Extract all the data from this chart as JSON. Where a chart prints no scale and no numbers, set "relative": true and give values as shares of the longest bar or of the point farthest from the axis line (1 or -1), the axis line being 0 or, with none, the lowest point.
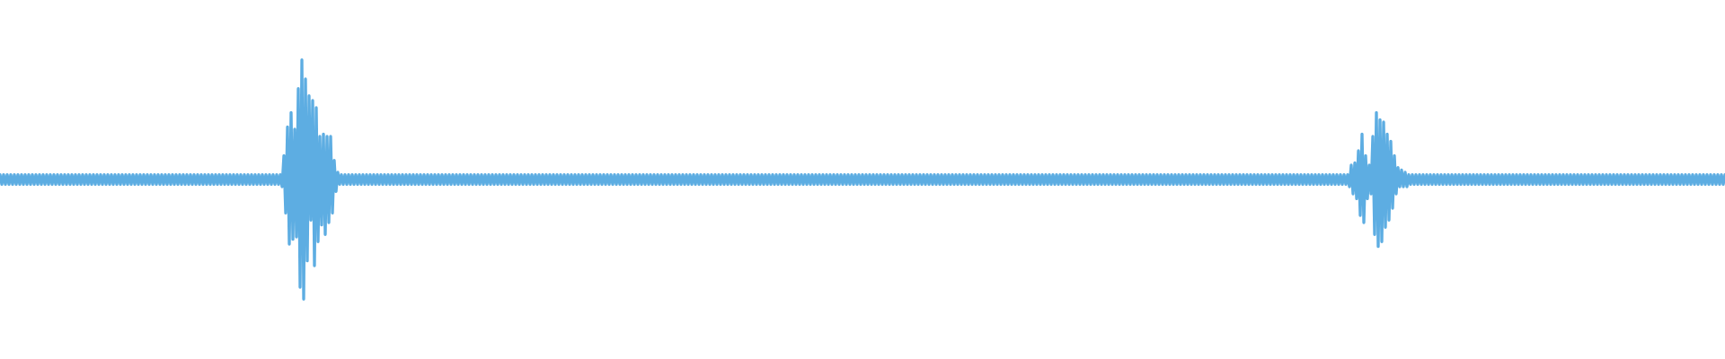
{
  "chart_data": {
    "type": "line",
    "relative": true,
    "color": "#5dade2",
    "categories": [
      null,
      null,
      null,
      null,
      null,
      null,
      null,
      null,
      null,
      null,
      null,
      null,
      null,
      null,
      null,
      null,
      null,
      null,
      null,
      null,
      null,
      null,
      null,
      null,
      null,
      null,
      null,
      null,
      null,
      null,
      null,
      null,
      null,
      null,
      null,
      null,
      null,
      null,
      null,
      null,
      null,
      null,
      null,
      null,
      null,
      null,
      null,
      null,
      null,
      null,
      null,
      null,
      null,
      null,
      null,
      null,
      null,
      null,
      null,
      null,
      null,
      null,
      null,
      null,
      null,
      null,
      null,
      null,
      null,
      null,
      null,
      null,
      null,
      null,
      null,
      null,
      null,
      null,
      null,
      null,
      null,
      null,
      null,
      null,
      null,
      null,
      null,
      null,
      null,
      null,
      null,
      null,
      null,
      null,
      null,
      null,
      null,
      null,
      null,
      null,
      null,
      null,
      null,
      null,
      null,
      null,
      null,
      null,
      null,
      null,
      null,
      null,
      null,
      null,
      null,
      null,
      null,
      null,
      null,
      null,
      null,
      null,
      null,
      null,
      null,
      null,
      null,
      null,
      null,
      null,
      null,
      null,
      null,
      null,
      null,
      null,
      null,
      null,
      null,
      null,
      null,
      null,
      null,
      null,
      null,
      null,
      null,
      null,
      null,
      null,
      null,
      null,
      null,
      null,
      null,
      null,
      null,
      null,
      null,
      null,
      null,
      null,
      null,
      null,
      null,
      null,
      null,
      null,
      null,
      null,
      null,
      null,
      null,
      null,
      null,
      null,
      null,
      null,
      null,
      null,
      null,
      null,
      null,
      null,
      null,
      null,
      null,
      null,
      null,
      null,
      null,
      null,
      null,
      null,
      null,
      null,
      null,
      null,
      null,
      null,
      null,
      null,
      null,
      null,
      null,
      null,
      null,
      null,
      null,
      null,
      null,
      null,
      null,
      null,
      null,
      null,
      null,
      null,
      null,
      null,
      null,
      null,
      null,
      null,
      null,
      null,
      null,
      null,
      null,
      null,
      null,
      null,
      null,
      null,
      null,
      null,
      null,
      null,
      null,
      null,
      null,
      null,
      null,
      null,
      null,
      null,
      null,
      null,
      null,
      null,
      null,
      null,
      null,
      null,
      null,
      null,
      null,
      null,
      null,
      null,
      null,
      null,
      null,
      null,
      null,
      null,
      null,
      null,
      null,
      null,
      null,
      null,
      null,
      null,
      null,
      null,
      null,
      null,
      null,
      null,
      null,
      null,
      null,
      null,
      null,
      null,
      null,
      null,
      null,
      null,
      null,
      null,
      null,
      null,
      null,
      null,
      null,
      null,
      null,
      null,
      null,
      null,
      null,
      null,
      null,
      null,
      null,
      null,
      null,
      null,
      null,
      null,
      null,
      null,
      null,
      null,
      null,
      null,
      null,
      null,
      null,
      null,
      null,
      null,
      null,
      null,
      null,
      null,
      null,
      null,
      null,
      null,
      null,
      null,
      null,
      null,
      null,
      null,
      null,
      null,
      null,
      null,
      null,
      null,
      null,
      null,
      null,
      null,
      null,
      null,
      null,
      null,
      null,
      null,
      null,
      null,
      null,
      null,
      null,
      null,
      null,
      null,
      null,
      null,
      null,
      null,
      null,
      null,
      null,
      null,
      null,
      null,
      null,
      null,
      null,
      null,
      null,
      null,
      null,
      null,
      null,
      null,
      null,
      null,
      null,
      null,
      null,
      null,
      null,
      null,
      null,
      null,
      null,
      null,
      null,
      null,
      null,
      null,
      null,
      null,
      null,
      null,
      null,
      null,
      null,
      null,
      null,
      null,
      null,
      null,
      null,
      null,
      null,
      null,
      null,
      null,
      null,
      null,
      null,
      null,
      null,
      null,
      null,
      null,
      null,
      null,
      null,
      null,
      null,
      null,
      null,
      null,
      null,
      null,
      null,
      null,
      null,
      null,
      null,
      null,
      null,
      null,
      null,
      null,
      null,
      null,
      null,
      null,
      null,
      null,
      null,
      null,
      null,
      null,
      null,
      null,
      null,
      null,
      null,
      null,
      null,
      null,
      null,
      null,
      null,
      null,
      null,
      null,
      null,
      null,
      null,
      null,
      null,
      null,
      null,
      null,
      null,
      null,
      null,
      null,
      null,
      null,
      null,
      null,
      null,
      null,
      null,
      null,
      null,
      null,
      null,
      null,
      null,
      null,
      null,
      null,
      null,
      null,
      null,
      null,
      null,
      null,
      null,
      null,
      null,
      null,
      null,
      null,
      null,
      null,
      null,
      null,
      null,
      null,
      null,
      null,
      null,
      null,
      null,
      null,
      null,
      null,
      null,
      null,
      null,
      null,
      null,
      null,
      null,
      null,
      null,
      null,
      null,
      null,
      null,
      null,
      null,
      null,
      null,
      null,
      null,
      null,
      null,
      null,
      null,
      null,
      null,
      null,
      null,
      null,
      null,
      null,
      null,
      null,
      null,
      null,
      null,
      null,
      null,
      null,
      null,
      null,
      null,
      null,
      null,
      null,
      null,
      null,
      null,
      null,
      null,
      null,
      null,
      null,
      null,
      null,
      null,
      null,
      null,
      null,
      null,
      null,
      null,
      null,
      null,
      null,
      null,
      null,
      null,
      null,
      null,
      null,
      null,
      null,
      null,
      null,
      null,
      null,
      null,
      null,
      null,
      null,
      null,
      null,
      null,
      null,
      null,
      null,
      null,
      null,
      null,
      null,
      null,
      null,
      null,
      null,
      null,
      null,
      null,
      null,
      null,
      null,
      null,
      null,
      null,
      null,
      null,
      null,
      null,
      null,
      null,
      null,
      null,
      null,
      null,
      null,
      null,
      null,
      null,
      null,
      null,
      null,
      null,
      null,
      null,
      null,
      null,
      null,
      null,
      null,
      null,
      null,
      null,
      null,
      null,
      null,
      null,
      null,
      null,
      null,
      null,
      null,
      null,
      null,
      null,
      null,
      null,
      null,
      null,
      null,
      null,
      null,
      null,
      null,
      null,
      null,
      null,
      null,
      null,
      null,
      null,
      null,
      null,
      null,
      null,
      null,
      null,
      null,
      null,
      null,
      null,
      null,
      null,
      null,
      null,
      null,
      null,
      null,
      null,
      null,
      null,
      null,
      null,
      null,
      null,
      null,
      null,
      null,
      null,
      null,
      null,
      null,
      null,
      null,
      null,
      null,
      null,
      null,
      null,
      null,
      null,
      null,
      null,
      null,
      null,
      null,
      null,
      null,
      null,
      null,
      null,
      null,
      null,
      null,
      null,
      null,
      null,
      null,
      null,
      null,
      null,
      null,
      null,
      null,
      null,
      null,
      null,
      null,
      null,
      null,
      null,
      null,
      null,
      null,
      null,
      null,
      null,
      null,
      null,
      null,
      null,
      null,
      null,
      null,
      null,
      null,
      null,
      null,
      null,
      null,
      null,
      null,
      null,
      null,
      null,
      null,
      null,
      null,
      null,
      null,
      null,
      null,
      null,
      null,
      null,
      null,
      null,
      null,
      null,
      null,
      null,
      null,
      null,
      null,
      null,
      null,
      null,
      null,
      null,
      null,
      null,
      null,
      null,
      null,
      null,
      null,
      null,
      null,
      null,
      null,
      null,
      null,
      null,
      null,
      null,
      null,
      null,
      null,
      null,
      null,
      null,
      null,
      null,
      null,
      null,
      null,
      null,
      null,
      null,
      null,
      null,
      null,
      null,
      null,
      null,
      null,
      null,
      null,
      null,
      null,
      null,
      null,
      null,
      null,
      null,
      null,
      null,
      null,
      null,
      null,
      null,
      null,
      null,
      null,
      null,
      null,
      null,
      null,
      null,
      null,
      null,
      null,
      null,
      null,
      null,
      null,
      null,
      null,
      null,
      null,
      null,
      null,
      null,
      null,
      null,
      null,
      null,
      null,
      null,
      null,
      null,
      null,
      null,
      null,
      null,
      null,
      null,
      null,
      null,
      null,
      null,
      null,
      null,
      null,
      null,
      null,
      null,
      null,
      null,
      null,
      null,
      null,
      null,
      null,
      null,
      null,
      null,
      null,
      null,
      null,
      null,
      null,
      null,
      null,
      null,
      null,
      null,
      null,
      null,
      null,
      null,
      null,
      null,
      null,
      null,
      null,
      null,
      null,
      null,
      null,
      null,
      null,
      null,
      null,
      null,
      null,
      null,
      null,
      null,
      null,
      null,
      null,
      null,
      null,
      null,
      null,
      null,
      null,
      null,
      null,
      null,
      null,
      null,
      null,
      null,
      null,
      null,
      null,
      null,
      null,
      null
    ],
    "values": [
      0.52,
      0.48,
      0.52,
      0.48,
      0.52,
      0.48,
      0.52,
      0.48,
      0.52,
      0.48,
      0.52,
      0.48,
      0.52,
      0.48,
      0.52,
      0.48,
      0.52,
      0.48,
      0.52,
      0.48,
      0.52,
      0.48,
      0.52,
      0.48,
      0.52,
      0.48,
      0.52,
      0.48,
      0.52,
      0.48,
      0.52,
      0.48,
      0.52,
      0.48,
      0.52,
      0.48,
      0.52,
      0.48,
      0.52,
      0.48,
      0.52,
      0.48,
      0.52,
      0.48,
      0.52,
      0.48,
      0.52,
      0.48,
      0.52,
      0.48,
      0.52,
      0.48,
      0.52,
      0.48,
      0.52,
      0.48,
      0.52,
      0.48,
      0.52,
      0.48,
      0.52,
      0.48,
      0.52,
      0.48,
      0.52,
      0.48,
      0.52,
      0.48,
      0.52,
      0.48,
      0.52,
      0.48,
      0.52,
      0.48,
      0.52,
      0.48,
      0.52,
      0.48,
      0.52,
      0.48,
      0.52,
      0.48,
      0.52,
      0.48,
      0.52,
      0.48,
      0.52,
      0.48,
      0.52,
      0.48,
      0.52,
      0.48,
      0.52,
      0.48,
      0.52,
      0.48,
      0.52,
      0.48,
      0.52,
      0.48,
      0.52,
      0.48,
      0.52,
      0.48,
      0.52,
      0.48,
      0.52,
      0.48,
      0.52,
      0.48,
      0.52,
      0.48,
      0.52,
      0.48,
      0.52,
      0.48,
      0.52,
      0.48,
      0.52,
      0.48,
      0.52,
      0.48,
      0.52,
      0.48,
      0.52,
      0.48,
      0.52,
      0.48,
      0.52,
      0.48,
      0.52,
      0.48,
      0.52,
      0.48,
      0.52,
      0.48,
      0.52,
      0.48,
      0.52,
      0.48,
      0.52,
      0.48,
      0.52,
      0.48,
      0.52,
      0.48,
      0.52,
      0.48,
      0.52,
      0.48,
      0.52,
      0.48,
      0.52,
      0.48,
      0.52,
      0.48,
      0.52,
      0.47,
      0.6,
      0.36,
      0.72,
      0.23,
      0.78,
      0.25,
      0.71,
      0.26,
      0.88,
      0.05,
      1,
      0,
      0.92,
      0.16,
      0.85,
      0.33,
      0.83,
      0.14,
      0.8,
      0.24,
      0.68,
      0.31,
      0.69,
      0.27,
      0.68,
      0.32,
      0.68,
      0.36,
      0.58,
      0.45,
      0.53,
      0.48,
      0.52,
      0.48,
      0.52,
      0.48,
      0.52,
      0.48,
      0.52,
      0.48,
      0.52,
      0.48,
      0.52,
      0.48,
      0.52,
      0.48,
      0.52,
      0.48,
      0.52,
      0.48,
      0.52,
      0.48,
      0.52,
      0.48,
      0.52,
      0.48,
      0.52,
      0.48,
      0.52,
      0.48,
      0.52,
      0.48,
      0.52,
      0.48,
      0.52,
      0.48,
      0.52,
      0.48,
      0.52,
      0.48,
      0.52,
      0.48,
      0.52,
      0.48,
      0.52,
      0.48,
      0.52,
      0.48,
      0.52,
      0.48,
      0.52,
      0.48,
      0.52,
      0.48,
      0.52,
      0.48,
      0.52,
      0.48,
      0.52,
      0.48,
      0.52,
      0.48,
      0.52,
      0.48,
      0.52,
      0.48,
      0.52,
      0.48,
      0.52,
      0.48,
      0.52,
      0.48,
      0.52,
      0.48,
      0.52,
      0.48,
      0.52,
      0.48,
      0.52,
      0.48,
      0.52,
      0.48,
      0.52,
      0.48,
      0.52,
      0.48,
      0.52,
      0.48,
      0.52,
      0.48,
      0.52,
      0.48,
      0.52,
      0.48,
      0.52,
      0.48,
      0.52,
      0.48,
      0.52,
      0.48,
      0.52,
      0.48,
      0.52,
      0.48,
      0.52,
      0.48,
      0.52,
      0.48,
      0.52,
      0.48,
      0.52,
      0.48,
      0.52,
      0.48,
      0.52,
      0.48,
      0.52,
      0.48,
      0.52,
      0.48,
      0.52,
      0.48,
      0.52,
      0.48,
      0.52,
      0.48,
      0.52,
      0.48,
      0.52,
      0.48,
      0.52,
      0.48,
      0.52,
      0.48,
      0.52,
      0.48,
      0.52,
      0.48,
      0.52,
      0.48,
      0.52,
      0.48,
      0.52,
      0.48,
      0.52,
      0.48,
      0.52,
      0.48,
      0.52,
      0.48,
      0.52,
      0.48,
      0.52,
      0.48,
      0.52,
      0.48,
      0.52,
      0.48,
      0.52,
      0.48,
      0.52,
      0.48,
      0.52,
      0.48,
      0.52,
      0.48,
      0.52,
      0.48,
      0.52,
      0.48,
      0.52,
      0.48,
      0.52,
      0.48,
      0.52,
      0.48,
      0.52,
      0.48,
      0.52,
      0.48,
      0.52,
      0.48,
      0.52,
      0.48,
      0.52,
      0.48,
      0.52,
      0.48,
      0.52,
      0.48,
      0.52,
      0.48,
      0.52,
      0.48,
      0.52,
      0.48,
      0.52,
      0.48,
      0.52,
      0.48,
      0.52,
      0.48,
      0.52,
      0.48,
      0.52,
      0.48,
      0.52,
      0.48,
      0.52,
      0.48,
      0.52,
      0.48,
      0.52,
      0.48,
      0.52,
      0.48,
      0.52,
      0.48,
      0.52,
      0.48,
      0.52,
      0.48,
      0.52,
      0.48,
      0.52,
      0.48,
      0.52,
      0.48,
      0.52,
      0.48,
      0.52,
      0.48,
      0.52,
      0.48,
      0.52,
      0.48,
      0.52,
      0.48,
      0.52,
      0.48,
      0.52,
      0.48,
      0.52,
      0.48,
      0.52,
      0.48,
      0.52,
      0.48,
      0.52,
      0.48,
      0.52,
      0.48,
      0.52,
      0.48,
      0.52,
      0.48,
      0.52,
      0.48,
      0.52,
      0.48,
      0.52,
      0.48,
      0.52,
      0.48,
      0.52,
      0.48,
      0.52,
      0.48,
      0.52,
      0.48,
      0.52,
      0.48,
      0.52,
      0.48,
      0.52,
      0.48,
      0.52,
      0.48,
      0.52,
      0.48,
      0.52,
      0.48,
      0.52,
      0.48,
      0.52,
      0.48,
      0.52,
      0.48,
      0.52,
      0.48,
      0.52,
      0.48,
      0.52,
      0.48,
      0.52,
      0.48,
      0.52,
      0.48,
      0.52,
      0.48,
      0.52,
      0.48,
      0.52,
      0.48,
      0.52,
      0.48,
      0.52,
      0.48,
      0.52,
      0.48,
      0.52,
      0.48,
      0.52,
      0.48,
      0.52,
      0.48,
      0.52,
      0.48,
      0.52,
      0.48,
      0.52,
      0.48,
      0.52,
      0.48,
      0.52,
      0.48,
      0.52,
      0.48,
      0.52,
      0.48,
      0.52,
      0.48,
      0.52,
      0.48,
      0.52,
      0.48,
      0.52,
      0.48,
      0.52,
      0.48,
      0.52,
      0.48,
      0.52,
      0.48,
      0.52,
      0.48,
      0.52,
      0.48,
      0.52,
      0.48,
      0.52,
      0.48,
      0.52,
      0.48,
      0.52,
      0.48,
      0.52,
      0.48,
      0.52,
      0.48,
      0.52,
      0.48,
      0.52,
      0.48,
      0.52,
      0.48,
      0.52,
      0.48,
      0.52,
      0.48,
      0.52,
      0.48,
      0.52,
      0.48,
      0.52,
      0.48,
      0.52,
      0.48,
      0.52,
      0.48,
      0.52,
      0.48,
      0.52,
      0.48,
      0.52,
      0.48,
      0.52,
      0.48,
      0.52,
      0.48,
      0.52,
      0.48,
      0.52,
      0.48,
      0.52,
      0.48,
      0.52,
      0.48,
      0.52,
      0.48,
      0.52,
      0.48,
      0.52,
      0.48,
      0.52,
      0.48,
      0.52,
      0.48,
      0.52,
      0.48,
      0.52,
      0.48,
      0.52,
      0.48,
      0.52,
      0.48,
      0.52,
      0.48,
      0.52,
      0.48,
      0.52,
      0.48,
      0.52,
      0.48,
      0.52,
      0.48,
      0.52,
      0.48,
      0.52,
      0.48,
      0.52,
      0.48,
      0.52,
      0.48,
      0.52,
      0.48,
      0.52,
      0.48,
      0.52,
      0.48,
      0.52,
      0.48,
      0.52,
      0.48,
      0.52,
      0.48,
      0.52,
      0.48,
      0.52,
      0.48,
      0.52,
      0.48,
      0.52,
      0.48,
      0.52,
      0.48,
      0.52,
      0.48,
      0.52,
      0.48,
      0.52,
      0.48,
      0.52,
      0.48,
      0.52,
      0.48,
      0.52,
      0.48,
      0.52,
      0.48,
      0.52,
      0.48,
      0.52,
      0.48,
      0.52,
      0.48,
      0.52,
      0.48,
      0.52,
      0.48,
      0.52,
      0.48,
      0.52,
      0.48,
      0.52,
      0.48,
      0.52,
      0.48,
      0.52,
      0.48,
      0.52,
      0.48,
      0.52,
      0.48,
      0.52,
      0.48,
      0.52,
      0.48,
      0.52,
      0.48,
      0.52,
      0.48,
      0.52,
      0.48,
      0.52,
      0.48,
      0.52,
      0.48,
      0.52,
      0.48,
      0.52,
      0.48,
      0.52,
      0.48,
      0.52,
      0.48,
      0.52,
      0.48,
      0.52,
      0.48,
      0.52,
      0.48,
      0.52,
      0.48,
      0.52,
      0.48,
      0.52,
      0.48,
      0.52,
      0.48,
      0.52,
      0.48,
      0.52,
      0.48,
      0.52,
      0.48,
      0.52,
      0.48,
      0.52,
      0.48,
      0.52,
      0.48,
      0.52,
      0.48,
      0.52,
      0.48,
      0.52,
      0.48,
      0.52,
      0.48,
      0.52,
      0.48,
      0.52,
      0.48,
      0.52,
      0.48,
      0.52,
      0.48,
      0.52,
      0.48,
      0.52,
      0.48,
      0.52,
      0.47,
      0.56,
      0.44,
      0.57,
      0.42,
      0.62,
      0.35,
      0.69,
      0.32,
      0.6,
      0.42,
      0.56,
      0.44,
      0.68,
      0.27,
      0.78,
      0.22,
      0.75,
      0.24,
      0.74,
      0.3,
      0.69,
      0.33,
      0.66,
      0.38,
      0.6,
      0.44,
      0.55,
      0.47,
      0.54,
      0.47,
      0.53,
      0.47,
      0.52,
      0.48,
      0.52,
      0.48,
      0.52,
      0.48,
      0.52,
      0.48,
      0.52,
      0.48,
      0.52,
      0.48,
      0.52,
      0.48,
      0.52,
      0.48,
      0.52,
      0.48,
      0.52,
      0.48,
      0.52,
      0.48,
      0.52,
      0.48,
      0.52,
      0.48,
      0.52,
      0.48,
      0.52,
      0.48,
      0.52,
      0.48,
      0.52,
      0.48,
      0.52,
      0.48,
      0.52,
      0.48,
      0.52,
      0.48,
      0.52,
      0.48,
      0.52,
      0.48,
      0.52,
      0.48,
      0.52,
      0.48,
      0.52,
      0.48,
      0.52,
      0.48,
      0.52,
      0.48,
      0.52,
      0.48,
      0.52,
      0.48,
      0.52,
      0.48,
      0.52,
      0.48,
      0.52,
      0.48,
      0.52,
      0.48,
      0.52,
      0.48,
      0.52,
      0.48,
      0.52,
      0.48,
      0.52,
      0.48,
      0.52,
      0.48,
      0.52,
      0.48,
      0.52,
      0.48,
      0.52,
      0.48,
      0.52,
      0.48,
      0.52,
      0.48,
      0.52,
      0.48,
      0.52,
      0.48,
      0.52,
      0.48,
      0.52,
      0.48,
      0.52,
      0.48,
      0.52,
      0.48,
      0.52,
      0.48,
      0.52,
      0.48,
      0.52,
      0.48,
      0.52,
      0.48,
      0.52,
      0.48,
      0.52,
      0.48,
      0.52,
      0.48,
      0.52,
      0.48,
      0.52,
      0.48,
      0.52,
      0.48,
      0.52,
      0.48,
      0.52,
      0.48,
      0.52,
      0.48,
      0.52,
      0.48,
      0.52,
      0.48,
      0.52,
      0.48,
      0.52,
      0.48,
      0.52,
      0.48,
      0.52,
      0.48,
      0.52,
      0.48,
      0.52,
      0.48,
      0.52,
      0.48,
      0.52,
      0.48,
      0.52,
      0.48,
      0.52,
      0.48,
      0.52,
      0.48,
      0.52,
      0.48,
      0.52,
      0.48,
      0.52,
      0.48,
      0.52,
      0.48,
      0.52,
      0.48,
      0.52,
      0.48,
      0.52,
      0.48,
      0.52,
      0.48,
      0.52,
      0.48,
      0.52,
      0.48,
      0.52,
      0.48,
      0.52,
      0.48,
      0.52,
      0.48,
      0.52
    ]
  }
}
